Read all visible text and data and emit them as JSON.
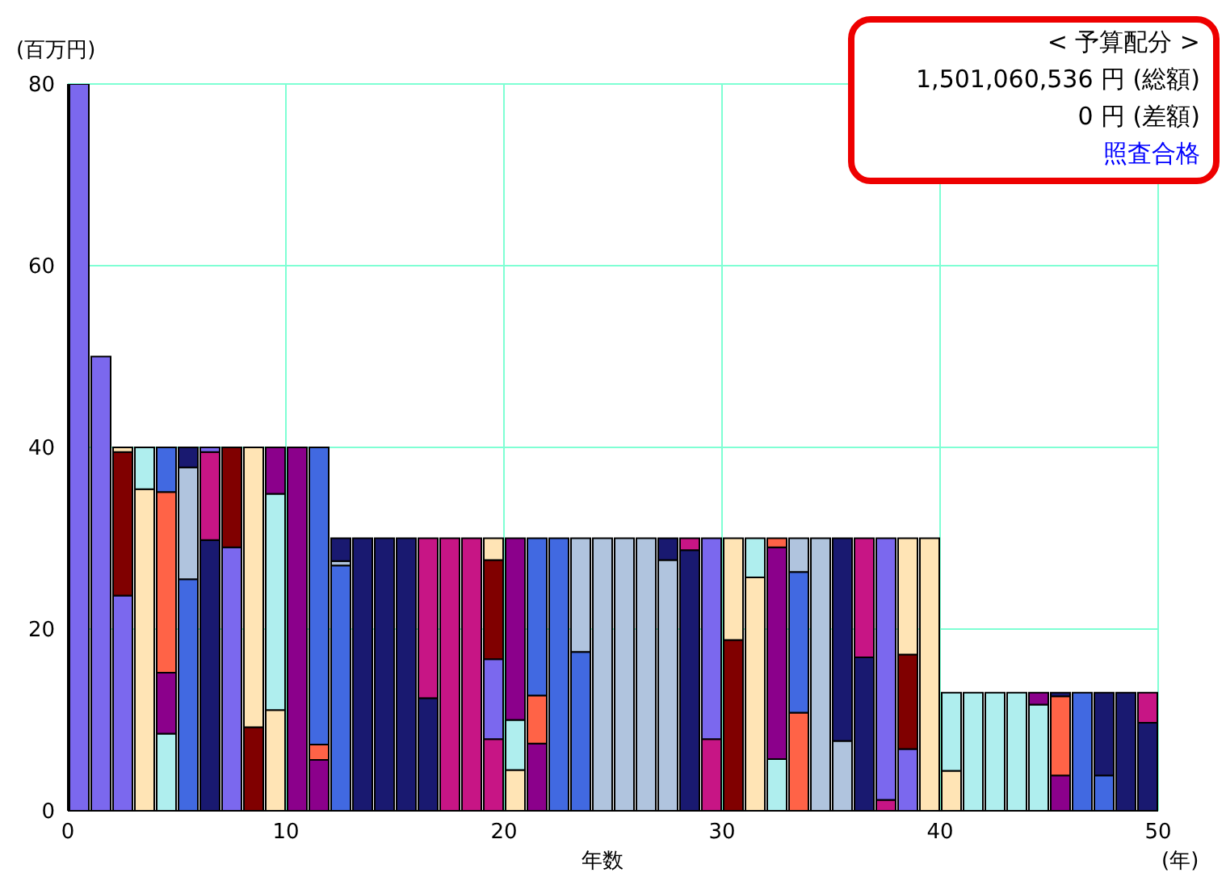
{
  "chart_data": {
    "type": "bar",
    "stacked": true,
    "xlabel": "年数",
    "ylabel": "(百万円)",
    "annotations": [
      "< 予算配分 >",
      "1,501,060,536 円 (総額)",
      "0 円 (差額)",
      "照査合格",
      "(年)"
    ],
    "x": [
      0.5,
      1.5,
      2.5,
      3.5,
      4.5,
      5.5,
      6.5,
      7.5,
      8.5,
      9.5,
      10.5,
      11.5,
      12.5,
      13.5,
      14.5,
      15.5,
      16.5,
      17.5,
      18.5,
      19.5,
      20.5,
      21.5,
      22.5,
      23.5,
      24.5,
      25.5,
      26.5,
      27.5,
      28.5,
      29.5,
      30.5,
      31.5,
      32.5,
      33.5,
      34.5,
      35.5,
      36.5,
      37.5,
      38.5,
      39.5,
      40.5,
      41.5,
      42.5,
      43.5,
      44.5,
      45.5,
      46.5,
      47.5,
      48.5,
      49.5
    ],
    "series": [
      {
        "values": [
          80,
          50,
          23.7,
          35.4,
          8.5,
          25.5,
          29.8,
          29,
          9.2,
          11.1,
          40,
          5.6,
          27,
          30,
          30,
          30,
          12.4,
          30,
          30,
          7.9,
          4.5,
          7.4,
          30,
          17.5,
          30,
          30,
          30,
          27.6,
          28.7,
          7.9,
          18.8,
          25.7,
          5.7,
          10.8,
          30,
          7.7,
          16.9,
          1.2,
          6.8,
          30,
          4.4,
          13,
          13,
          13,
          11.7,
          3.9,
          13,
          3.9,
          13,
          9.7
        ],
        "colors": [
          "#7b68ee",
          "#7b68ee",
          "#7b68ee",
          "#ffe4b5",
          "#afeeee",
          "#4169e1",
          "#191970",
          "#7b68ee",
          "#800000",
          "#ffe4b5",
          "#8b008b",
          "#8b008b",
          "#4169e1",
          "#191970",
          "#191970",
          "#191970",
          "#191970",
          "#c71585",
          "#c71585",
          "#c71585",
          "#ffe4b5",
          "#8b008b",
          "#4169e1",
          "#4169e1",
          "#b0c4de",
          "#b0c4de",
          "#b0c4de",
          "#b0c4de",
          "#191970",
          "#c71585",
          "#800000",
          "#ffe4b5",
          "#afeeee",
          "#ff6347",
          "#b0c4de",
          "#b0c4de",
          "#191970",
          "#c71585",
          "#7b68ee",
          "#ffe4b5",
          "#ffe4b5",
          "#afeeee",
          "#afeeee",
          "#afeeee",
          "#afeeee",
          "#8b008b",
          "#4169e1",
          "#4169e1",
          "#191970",
          "#191970"
        ]
      },
      {
        "values": [
          null,
          null,
          15.8,
          4.6,
          6.7,
          12.3,
          9.7,
          11,
          30.8,
          23.8,
          null,
          1.7,
          0.5,
          null,
          null,
          null,
          17.6,
          null,
          null,
          8.8,
          5.5,
          5.3,
          null,
          12.5,
          null,
          null,
          null,
          2.4,
          1.3,
          22.1,
          11.2,
          4.3,
          23.3,
          15.5,
          null,
          22.3,
          13.1,
          28.8,
          10.4,
          null,
          8.6,
          null,
          null,
          null,
          1.3,
          8.7,
          null,
          9.1,
          null,
          3.3
        ],
        "colors": [
          null,
          null,
          "#800000",
          "#afeeee",
          "#8b008b",
          "#b0c4de",
          "#c71585",
          "#800000",
          "#ffe4b5",
          "#afeeee",
          null,
          "#ff6347",
          "#b0c4de",
          null,
          null,
          null,
          "#c71585",
          null,
          null,
          "#7b68ee",
          "#afeeee",
          "#ff6347",
          null,
          "#b0c4de",
          null,
          null,
          null,
          "#191970",
          "#c71585",
          "#7b68ee",
          "#ffe4b5",
          "#afeeee",
          "#8b008b",
          "#4169e1",
          null,
          "#191970",
          "#c71585",
          "#7b68ee",
          "#800000",
          null,
          "#afeeee",
          null,
          null,
          null,
          "#8b008b",
          "#ff6347",
          null,
          "#191970",
          null,
          "#c71585"
        ]
      },
      {
        "values": [
          null,
          null,
          0.5,
          null,
          19.9,
          2.2,
          0.5,
          null,
          null,
          5.1,
          null,
          32.7,
          2.5,
          null,
          null,
          null,
          null,
          null,
          null,
          10.9,
          20,
          17.3,
          null,
          null,
          null,
          null,
          null,
          null,
          null,
          null,
          null,
          null,
          1,
          3.7,
          null,
          null,
          null,
          null,
          12.8,
          null,
          null,
          null,
          null,
          null,
          null,
          0.4,
          null,
          null,
          null,
          null
        ],
        "colors": [
          null,
          null,
          "#ffe4b5",
          null,
          "#ff6347",
          "#191970",
          "#7b68ee",
          null,
          null,
          "#8b008b",
          null,
          "#4169e1",
          "#191970",
          null,
          null,
          null,
          null,
          null,
          null,
          "#800000",
          "#8b008b",
          "#4169e1",
          null,
          null,
          null,
          null,
          null,
          null,
          null,
          null,
          null,
          null,
          "#ff6347",
          "#b0c4de",
          null,
          null,
          null,
          null,
          "#ffe4b5",
          null,
          null,
          null,
          null,
          null,
          null,
          "#191970",
          null,
          null,
          null,
          null
        ]
      },
      {
        "values": [
          null,
          null,
          null,
          null,
          4.9,
          null,
          null,
          null,
          null,
          null,
          null,
          null,
          null,
          null,
          null,
          null,
          null,
          null,
          null,
          2.4,
          null,
          null,
          null,
          null,
          null,
          null,
          null,
          null,
          null,
          null,
          null,
          null,
          null,
          null,
          null,
          null,
          null,
          null,
          null,
          null,
          null,
          null,
          null,
          null,
          null,
          null,
          null,
          null,
          null,
          null
        ],
        "colors": [
          null,
          null,
          null,
          null,
          "#4169e1",
          null,
          null,
          null,
          null,
          null,
          null,
          null,
          null,
          null,
          null,
          null,
          null,
          null,
          null,
          "#ffe4b5",
          null,
          null,
          null,
          null,
          null,
          null,
          null,
          null,
          null,
          null,
          null,
          null,
          null,
          null,
          null,
          null,
          null,
          null,
          null,
          null,
          null,
          null,
          null,
          null,
          null,
          null,
          null,
          null,
          null,
          null
        ]
      }
    ],
    "xlim": [
      0,
      50
    ],
    "xticks": [
      0,
      10,
      20,
      30,
      40,
      50
    ],
    "ylim": [
      0,
      80
    ],
    "yticks": [
      0,
      20,
      40,
      60,
      80
    ],
    "grid": true,
    "legend": false
  }
}
